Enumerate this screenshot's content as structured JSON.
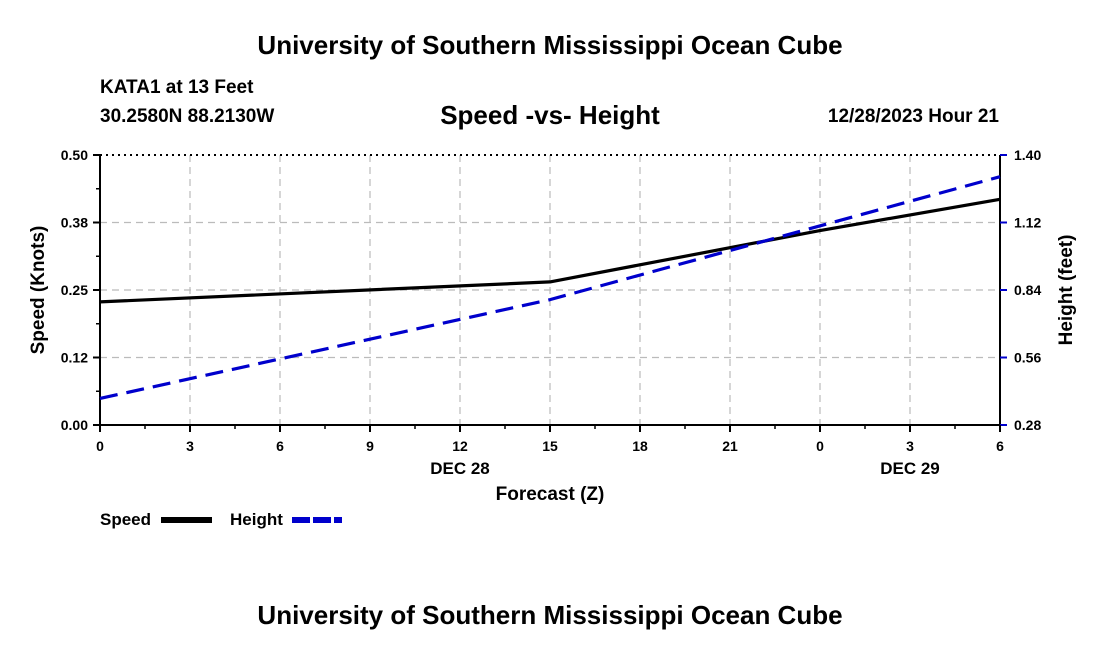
{
  "header": {
    "title": "University of Southern Mississippi Ocean Cube",
    "station": "KATA1 at 13 Feet",
    "coords": "30.2580N  88.2130W",
    "subtitle": "Speed -vs- Height",
    "datetime": "12/28/2023 Hour 21"
  },
  "footer": {
    "title": "University of Southern Mississippi Ocean Cube"
  },
  "legend": {
    "speed_label": "Speed",
    "height_label": "Height"
  },
  "colors": {
    "speed": "#000000",
    "height": "#0000cc",
    "grid": "#bbbbbb"
  },
  "chart_data": {
    "type": "line",
    "title": "Speed -vs- Height",
    "xlabel": "Forecast (Z)",
    "ylabel": "Speed (Knots)",
    "y2label": "Height (feet)",
    "x": [
      0,
      3,
      6,
      9,
      12,
      15,
      18,
      21,
      24,
      27,
      30
    ],
    "x_tick_labels": [
      "0",
      "3",
      "6",
      "9",
      "12",
      "15",
      "18",
      "21",
      "0",
      "3",
      "6"
    ],
    "date_labels": [
      {
        "text": "DEC 28",
        "x": 12
      },
      {
        "text": "DEC 29",
        "x": 27
      }
    ],
    "xlim": [
      0,
      30
    ],
    "ylim": [
      0,
      0.5
    ],
    "y_ticks": [
      "0.00",
      "0.12",
      "0.25",
      "0.38",
      "0.50"
    ],
    "y2lim": [
      0.28,
      1.4
    ],
    "y2_ticks": [
      "0.28",
      "0.56",
      "0.84",
      "1.12",
      "1.40"
    ],
    "grid": true,
    "series": [
      {
        "name": "Speed",
        "axis": "left",
        "style": "solid",
        "x": [
          0,
          15,
          24,
          30
        ],
        "values": [
          0.228,
          0.265,
          0.36,
          0.418
        ]
      },
      {
        "name": "Height",
        "axis": "right",
        "style": "dashed",
        "x": [
          0,
          15,
          30
        ],
        "values": [
          0.39,
          0.8,
          1.31
        ]
      }
    ]
  }
}
